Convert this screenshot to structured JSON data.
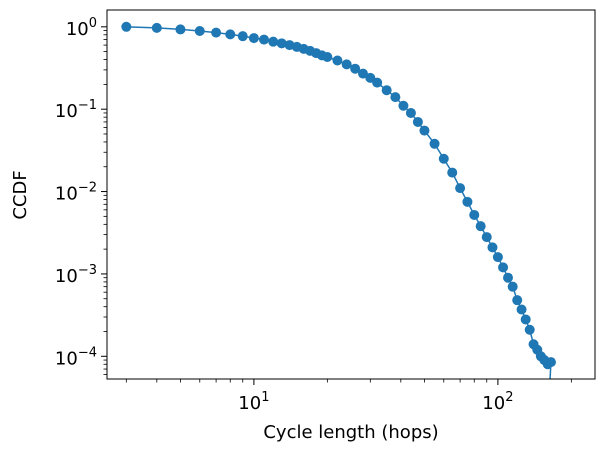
{
  "chart_data": {
    "type": "line",
    "title": "",
    "xlabel": "Cycle length (hops)",
    "ylabel": "CCDF",
    "xscale": "log",
    "yscale": "log",
    "xlim": [
      2.5,
      250
    ],
    "ylim": [
      5.3e-05,
      1.6
    ],
    "grid": false,
    "marker": "circle",
    "color": "#1f77b4",
    "x_ticks": [
      {
        "value": 10,
        "base": "10",
        "exp": "1"
      },
      {
        "value": 100,
        "base": "10",
        "exp": "2"
      }
    ],
    "y_ticks": [
      {
        "value": 1,
        "base": "10",
        "exp": "0"
      },
      {
        "value": 0.1,
        "base": "10",
        "exp": "−1"
      },
      {
        "value": 0.01,
        "base": "10",
        "exp": "−2"
      },
      {
        "value": 0.001,
        "base": "10",
        "exp": "−3"
      },
      {
        "value": 0.0001,
        "base": "10",
        "exp": "−4"
      }
    ],
    "series": [
      {
        "name": "CCDF",
        "x": [
          3,
          4,
          5,
          6,
          7,
          8,
          9,
          10,
          11,
          12,
          13,
          14,
          15,
          16,
          17,
          18,
          19,
          20,
          22,
          24,
          26,
          28,
          30,
          32,
          35,
          38,
          41,
          44,
          47,
          50,
          55,
          60,
          65,
          70,
          75,
          80,
          85,
          90,
          95,
          100,
          105,
          110,
          115,
          120,
          125,
          130,
          135,
          140,
          145,
          150,
          155,
          160,
          165
        ],
        "y": [
          1.0,
          0.97,
          0.93,
          0.89,
          0.85,
          0.81,
          0.77,
          0.73,
          0.7,
          0.66,
          0.63,
          0.6,
          0.57,
          0.54,
          0.51,
          0.48,
          0.45,
          0.43,
          0.39,
          0.35,
          0.31,
          0.27,
          0.24,
          0.21,
          0.17,
          0.14,
          0.11,
          0.09,
          0.07,
          0.055,
          0.038,
          0.025,
          0.017,
          0.011,
          0.0075,
          0.0052,
          0.0038,
          0.0028,
          0.0021,
          0.0016,
          0.0012,
          0.0009,
          0.0007,
          0.00048,
          0.00037,
          0.00028,
          0.00021,
          0.00014,
          0.00012,
          0.0001,
          9e-05,
          8e-05,
          8.5e-05
        ]
      }
    ]
  }
}
